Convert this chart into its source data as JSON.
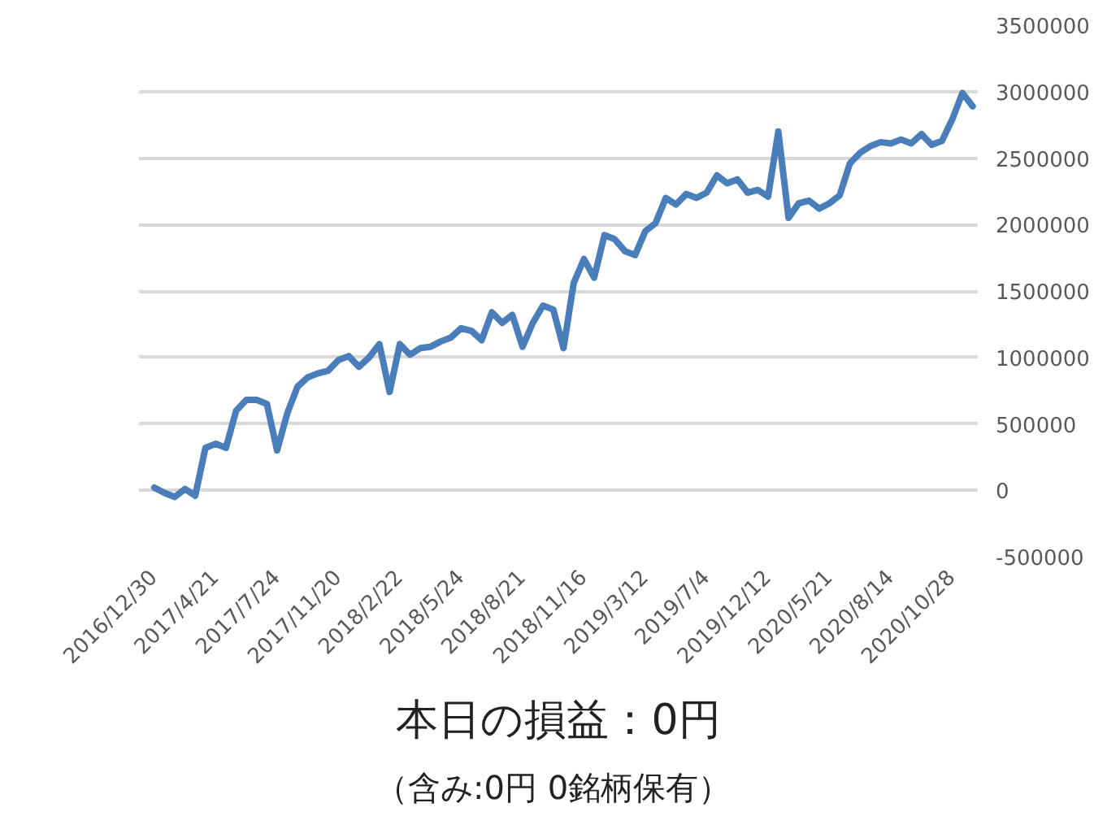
{
  "chart_data": {
    "type": "line",
    "categories": [
      "2016/12/30",
      null,
      null,
      null,
      null,
      null,
      "2017/4/21",
      null,
      null,
      null,
      null,
      null,
      "2017/7/24",
      null,
      null,
      null,
      null,
      null,
      "2017/11/20",
      null,
      null,
      null,
      null,
      null,
      "2018/2/22",
      null,
      null,
      null,
      null,
      null,
      "2018/5/24",
      null,
      null,
      null,
      null,
      null,
      "2018/8/21",
      null,
      null,
      null,
      null,
      null,
      "2018/11/16",
      null,
      null,
      null,
      null,
      null,
      "2019/3/12",
      null,
      null,
      null,
      null,
      null,
      "2019/7/4",
      null,
      null,
      null,
      null,
      null,
      "2019/12/12",
      null,
      null,
      null,
      null,
      null,
      "2020/5/21",
      null,
      null,
      null,
      null,
      null,
      "2020/8/14",
      null,
      null,
      null,
      null,
      null,
      "2020/10/28",
      null,
      null
    ],
    "values": [
      20000,
      -20000,
      -50000,
      10000,
      -40000,
      320000,
      350000,
      320000,
      600000,
      680000,
      680000,
      650000,
      300000,
      580000,
      780000,
      850000,
      880000,
      900000,
      980000,
      1010000,
      930000,
      1000000,
      1100000,
      740000,
      1100000,
      1020000,
      1070000,
      1080000,
      1120000,
      1150000,
      1220000,
      1200000,
      1130000,
      1340000,
      1260000,
      1320000,
      1080000,
      1260000,
      1390000,
      1360000,
      1070000,
      1560000,
      1740000,
      1600000,
      1920000,
      1890000,
      1800000,
      1770000,
      1950000,
      2010000,
      2200000,
      2150000,
      2230000,
      2200000,
      2240000,
      2370000,
      2310000,
      2340000,
      2240000,
      2260000,
      2210000,
      2700000,
      2050000,
      2160000,
      2180000,
      2120000,
      2160000,
      2220000,
      2460000,
      2540000,
      2590000,
      2620000,
      2610000,
      2640000,
      2610000,
      2680000,
      2600000,
      2630000,
      2790000,
      2990000,
      2890000
    ],
    "color": "#4a7ebb",
    "ylim": [
      -500000,
      3500000
    ],
    "yticks": [
      -500000,
      0,
      500000,
      1000000,
      1500000,
      2000000,
      2500000,
      3000000,
      3500000
    ],
    "grid": "y",
    "annotations": [
      "本日の損益：0円",
      "（含み:0円  0銘柄保有）"
    ]
  }
}
